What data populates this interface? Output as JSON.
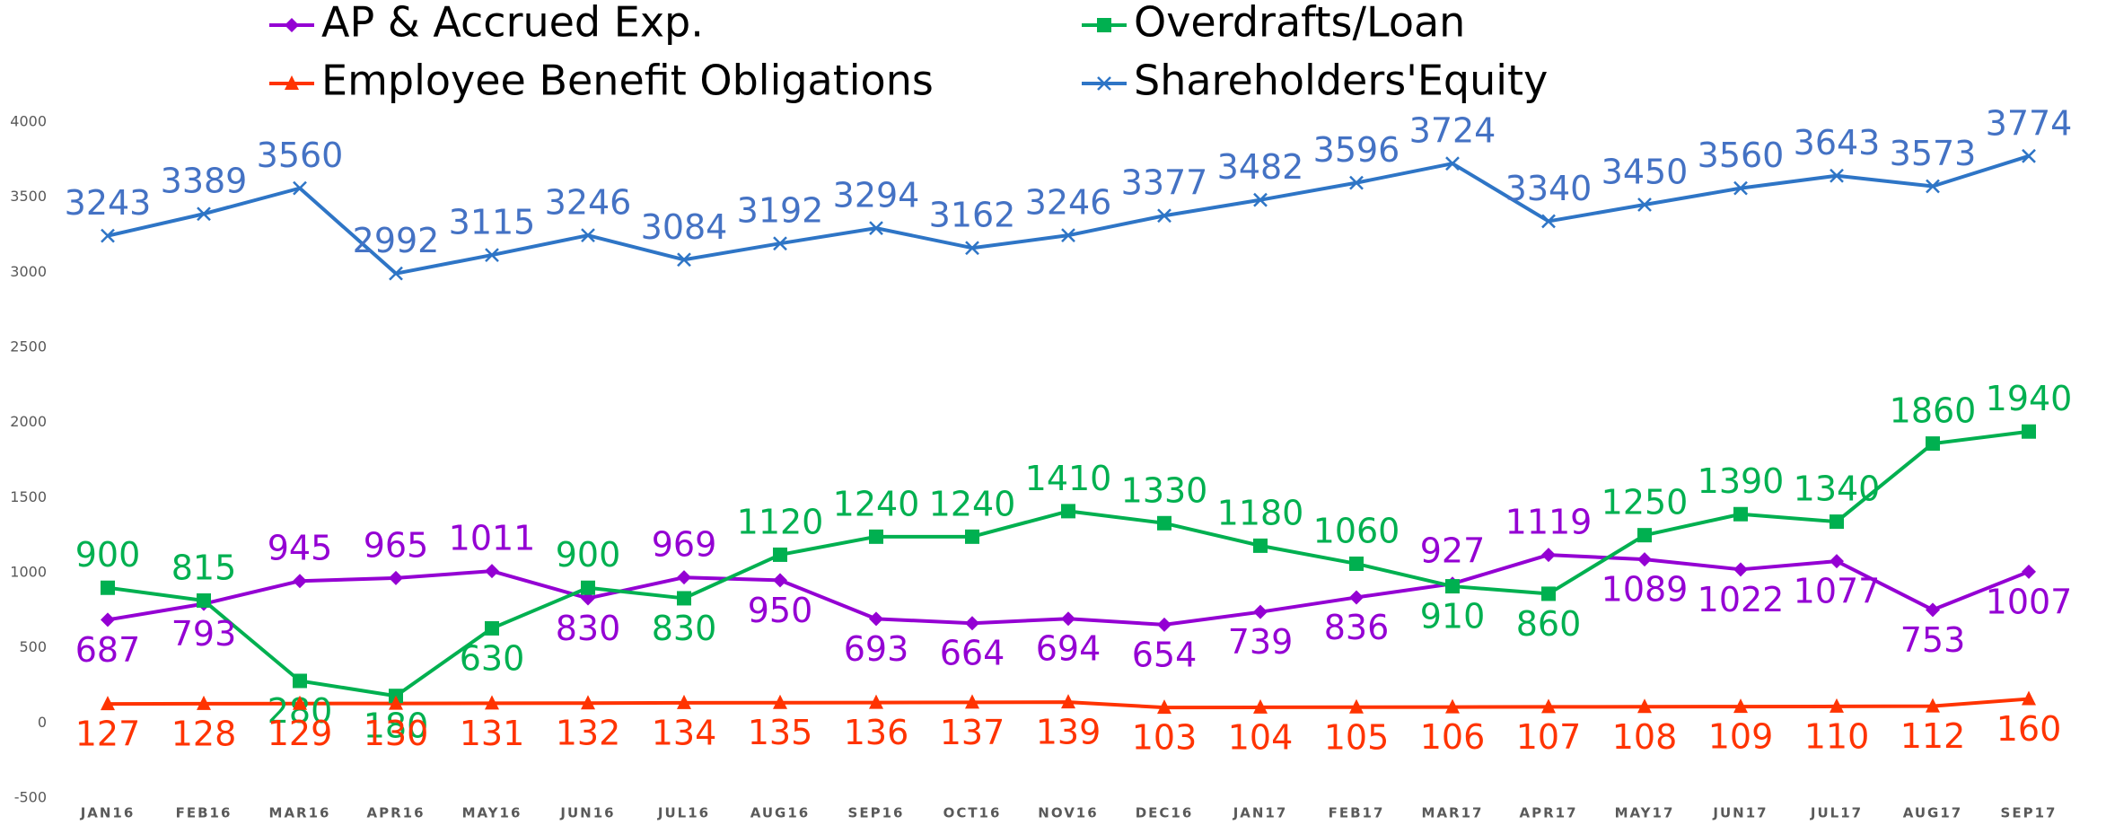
{
  "chart_data": {
    "type": "line",
    "categories": [
      "JAN16",
      "FEB16",
      "MAR16",
      "APR16",
      "MAY16",
      "JUN16",
      "JUL16",
      "AUG16",
      "SEP16",
      "OCT16",
      "NOV16",
      "DEC16",
      "JAN17",
      "FEB17",
      "MAR17",
      "APR17",
      "MAY17",
      "JUN17",
      "JUL17",
      "AUG17",
      "SEP17"
    ],
    "series": [
      {
        "name": "AP & Accrued Exp.",
        "color": "#9400d3",
        "marker": "diamond",
        "values": [
          687,
          793,
          945,
          965,
          1011,
          830,
          969,
          950,
          693,
          664,
          694,
          654,
          739,
          836,
          927,
          1119,
          1089,
          1022,
          1077,
          753,
          1007
        ]
      },
      {
        "name": "Overdrafts/Loan",
        "color": "#00b050",
        "marker": "square",
        "values": [
          900,
          815,
          280,
          180,
          630,
          900,
          830,
          1120,
          1240,
          1240,
          1410,
          1330,
          1180,
          1060,
          910,
          860,
          1250,
          1390,
          1340,
          1860,
          1940
        ]
      },
      {
        "name": "Employee Benefit Obligations",
        "color": "#ff3300",
        "marker": "triangle",
        "values": [
          127,
          128,
          129,
          130,
          131,
          132,
          134,
          135,
          136,
          137,
          139,
          103,
          104,
          105,
          106,
          107,
          108,
          109,
          110,
          112,
          160
        ]
      },
      {
        "name": "Shareholders'Equity",
        "color": "#2e75c6",
        "label_color": "#4472c4",
        "marker": "x",
        "values": [
          3243,
          3389,
          3560,
          2992,
          3115,
          3246,
          3084,
          3192,
          3294,
          3162,
          3246,
          3377,
          3482,
          3596,
          3724,
          3340,
          3450,
          3560,
          3643,
          3573,
          3774
        ]
      }
    ],
    "ylim": [
      -500,
      4000
    ],
    "yticks": [
      -500,
      0,
      500,
      1000,
      1500,
      2000,
      2500,
      3000,
      3500,
      4000
    ],
    "grid": false,
    "legend": "top"
  }
}
